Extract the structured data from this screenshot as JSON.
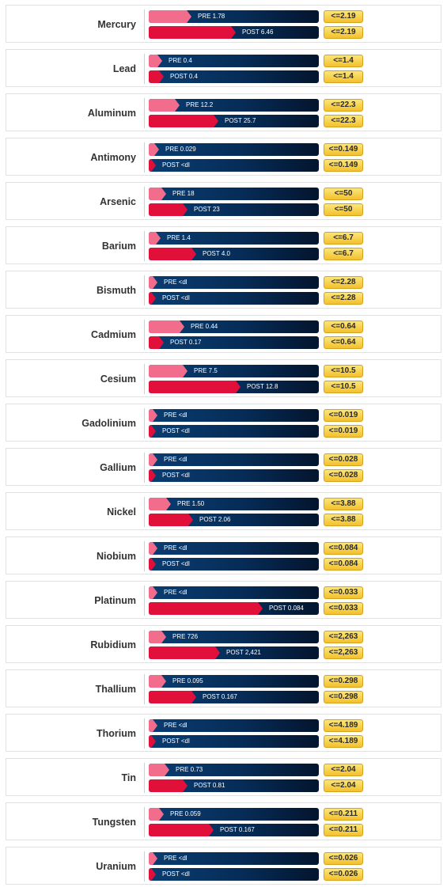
{
  "chart_data": {
    "type": "bar",
    "bar_scale_max": 8.0,
    "colors": {
      "pre": "#f26d8c",
      "post": "#e0103a",
      "track": "#062c57",
      "limit_badge": "#f7d24f"
    },
    "metals": [
      {
        "name": "Mercury",
        "pre": 1.78,
        "pre_label": "PRE 1.78",
        "post": 6.46,
        "post_label": "POST 6.46",
        "limit": "<=2.19"
      },
      {
        "name": "Lead",
        "pre": 0.4,
        "pre_label": "PRE 0.4",
        "post": 0.4,
        "post_label": "POST 0.4",
        "limit": "<=1.4"
      },
      {
        "name": "Aluminum",
        "pre": 12.2,
        "pre_label": "PRE 12.2",
        "post": 25.7,
        "post_label": "POST 25.7",
        "limit": "<=22.3"
      },
      {
        "name": "Antimony",
        "pre": 0.029,
        "pre_label": "PRE 0.029",
        "post": null,
        "post_label": "POST <dl",
        "limit": "<=0.149"
      },
      {
        "name": "Arsenic",
        "pre": 18,
        "pre_label": "PRE 18",
        "post": 23,
        "post_label": "POST 23",
        "limit": "<=50"
      },
      {
        "name": "Barium",
        "pre": 1.4,
        "pre_label": "PRE 1.4",
        "post": 4.0,
        "post_label": "POST 4.0",
        "limit": "<=6.7"
      },
      {
        "name": "Bismuth",
        "pre": null,
        "pre_label": "PRE <dl",
        "post": null,
        "post_label": "POST <dl",
        "limit": "<=2.28"
      },
      {
        "name": "Cadmium",
        "pre": 0.44,
        "pre_label": "PRE 0.44",
        "post": 0.17,
        "post_label": "POST 0.17",
        "limit": "<=0.64"
      },
      {
        "name": "Cesium",
        "pre": 7.5,
        "pre_label": "PRE 7.5",
        "post": 12.8,
        "post_label": "POST 12.8",
        "limit": "<=10.5"
      },
      {
        "name": "Gadolinium",
        "pre": null,
        "pre_label": "PRE <dl",
        "post": null,
        "post_label": "POST <dl",
        "limit": "<=0.019"
      },
      {
        "name": "Gallium",
        "pre": null,
        "pre_label": "PRE <dl",
        "post": null,
        "post_label": "POST <dl",
        "limit": "<=0.028"
      },
      {
        "name": "Nickel",
        "pre": 1.5,
        "pre_label": "PRE 1.50",
        "post": 2.06,
        "post_label": "POST 2.06",
        "limit": "<=3.88"
      },
      {
        "name": "Niobium",
        "pre": null,
        "pre_label": "PRE <dl",
        "post": null,
        "post_label": "POST <dl",
        "limit": "<=0.084"
      },
      {
        "name": "Platinum",
        "pre": null,
        "pre_label": "PRE <dl",
        "post": 0.084,
        "post_label": "POST 0.084",
        "limit": "<=0.033"
      },
      {
        "name": "Rubidium",
        "pre": 726,
        "pre_label": "PRE 726",
        "post": 2421,
        "post_label": "POST 2,421",
        "limit": "<=2,263"
      },
      {
        "name": "Thallium",
        "pre": 0.095,
        "pre_label": "PRE 0.095",
        "post": 0.167,
        "post_label": "POST 0.167",
        "limit": "<=0.298"
      },
      {
        "name": "Thorium",
        "pre": null,
        "pre_label": "PRE <dl",
        "post": null,
        "post_label": "POST <dl",
        "limit": "<=4.189"
      },
      {
        "name": "Tin",
        "pre": 0.73,
        "pre_label": "PRE 0.73",
        "post": 0.81,
        "post_label": "POST 0.81",
        "limit": "<=2.04"
      },
      {
        "name": "Tungsten",
        "pre": 0.059,
        "pre_label": "PRE 0.059",
        "post": 0.167,
        "post_label": "POST 0.167",
        "limit": "<=0.211"
      },
      {
        "name": "Uranium",
        "pre": null,
        "pre_label": "PRE <dl",
        "post": null,
        "post_label": "POST <dl",
        "limit": "<=0.026"
      }
    ],
    "fill_fraction": {
      "pre": [
        0.25,
        0.08,
        0.18,
        0.06,
        0.1,
        0.07,
        0.05,
        0.21,
        0.23,
        0.05,
        0.05,
        0.13,
        0.05,
        0.05,
        0.1,
        0.1,
        0.05,
        0.12,
        0.09,
        0.05
      ],
      "post": [
        0.51,
        0.09,
        0.41,
        0.04,
        0.23,
        0.28,
        0.04,
        0.09,
        0.54,
        0.04,
        0.04,
        0.26,
        0.04,
        0.67,
        0.42,
        0.28,
        0.04,
        0.23,
        0.38,
        0.04
      ]
    }
  }
}
